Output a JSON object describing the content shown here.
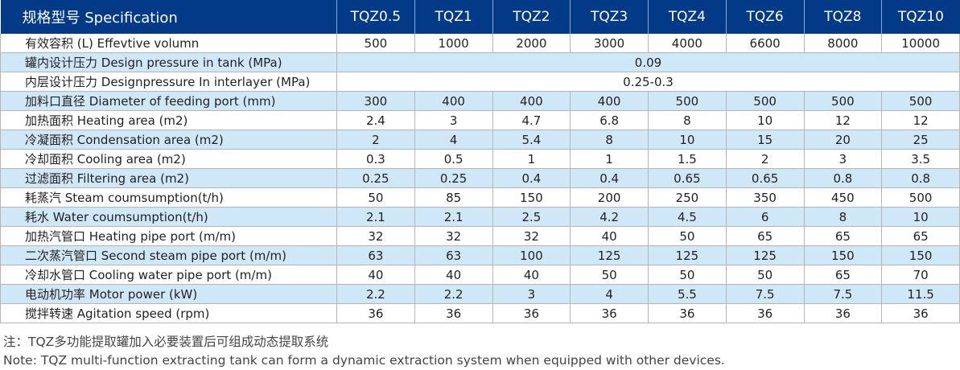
{
  "header": {
    "spec_label": "规格型号 Specification",
    "models": [
      "TQZ0.5",
      "TQZ1",
      "TQZ2",
      "TQZ3",
      "TQZ4",
      "TQZ6",
      "TQZ8",
      "TQZ10"
    ]
  },
  "rows": [
    {
      "label": "有效容积 (L) Effevtive volumn",
      "values": [
        "500",
        "1000",
        "2000",
        "3000",
        "4000",
        "6600",
        "8000",
        "10000"
      ]
    },
    {
      "label": "罐内设计压力 Design pressure in tank (MPa)",
      "span": "0.09"
    },
    {
      "label": "内层设计压力 Designpressure In interlayer (MPa)",
      "span": "0.25-0.3"
    },
    {
      "label": "加料口直径 Diameter of feeding port (mm)",
      "values": [
        "300",
        "400",
        "400",
        "400",
        "500",
        "500",
        "500",
        "500"
      ]
    },
    {
      "label": "加热面积 Heating area (m2)",
      "values": [
        "2.4",
        "3",
        "4.7",
        "6.8",
        "8",
        "10",
        "12",
        "12"
      ]
    },
    {
      "label": "冷凝面积 Condensation area (m2)",
      "values": [
        "2",
        "4",
        "5.4",
        "8",
        "10",
        "15",
        "20",
        "25"
      ]
    },
    {
      "label": "冷却面积 Cooling area (m2)",
      "values": [
        "0.3",
        "0.5",
        "1",
        "1",
        "1.5",
        "2",
        "3",
        "3.5"
      ]
    },
    {
      "label": "过滤面积 Filtering area (m2)",
      "values": [
        "0.25",
        "0.25",
        "0.4",
        "0.4",
        "0.65",
        "0.65",
        "0.8",
        "0.8"
      ]
    },
    {
      "label": "耗蒸汽 Steam coumsumption(t/h)",
      "values": [
        "50",
        "85",
        "150",
        "200",
        "250",
        "350",
        "450",
        "500"
      ]
    },
    {
      "label": "耗水 Water coumsumption(t/h)",
      "values": [
        "2.1",
        "2.1",
        "2.5",
        "4.2",
        "4.5",
        "6",
        "8",
        "10"
      ]
    },
    {
      "label": "加热汽管口 Heating pipe port (m/m)",
      "values": [
        "32",
        "32",
        "32",
        "40",
        "50",
        "65",
        "65",
        "65"
      ]
    },
    {
      "label": "二次蒸汽管口 Second steam pipe port (m/m)",
      "values": [
        "63",
        "63",
        "100",
        "125",
        "125",
        "125",
        "150",
        "150"
      ]
    },
    {
      "label": "冷却水管口 Cooling water pipe port (m/m)",
      "values": [
        "40",
        "40",
        "40",
        "50",
        "50",
        "50",
        "65",
        "70"
      ]
    },
    {
      "label": "电动机功率 Motor power (kW)",
      "values": [
        "2.2",
        "2.2",
        "3",
        "4",
        "5.5",
        "7.5",
        "7.5",
        "11.5"
      ]
    },
    {
      "label": "搅拌转速 Agitation speed (rpm)",
      "values": [
        "36",
        "36",
        "36",
        "36",
        "36",
        "36",
        "36",
        "36"
      ]
    }
  ],
  "notes": {
    "cn": "注：TQZ多功能提取罐加入必要装置后可组成动态提取系统",
    "en": "Note: TQZ multi-function extracting tank can form a dynamic extraction system when equipped with other devices."
  }
}
